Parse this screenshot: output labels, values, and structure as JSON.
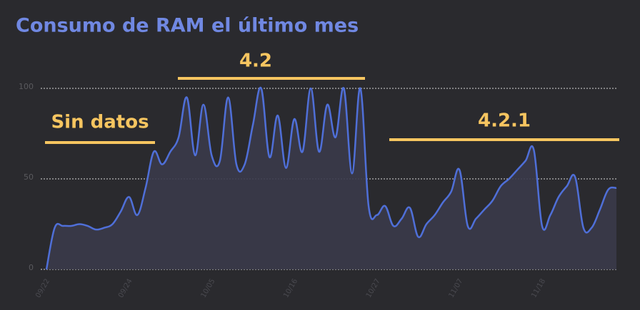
{
  "chart_data": {
    "type": "area",
    "title": "Consumo de RAM el último mes",
    "annotations": [
      "Sin datos",
      "4.2",
      "4.2.1"
    ],
    "categories": [
      "09/22",
      null,
      null,
      null,
      null,
      null,
      null,
      null,
      null,
      null,
      "09/24",
      null,
      null,
      null,
      null,
      null,
      null,
      null,
      null,
      null,
      "10/05",
      null,
      null,
      null,
      null,
      null,
      null,
      null,
      null,
      null,
      "10/16",
      null,
      null,
      null,
      null,
      null,
      null,
      null,
      null,
      null,
      "10/27",
      null,
      null,
      null,
      null,
      null,
      null,
      null,
      null,
      null,
      "11/07",
      null,
      null,
      null,
      null,
      null,
      null,
      null,
      null,
      null,
      "11/18",
      null,
      null,
      null,
      null,
      null,
      null,
      null,
      null,
      null
    ],
    "values": [
      0,
      23,
      24,
      24,
      25,
      24,
      22,
      23,
      25,
      32,
      40,
      30,
      45,
      65,
      58,
      65,
      73,
      95,
      63,
      91,
      63,
      60,
      95,
      58,
      58,
      80,
      100,
      62,
      85,
      56,
      83,
      65,
      100,
      65,
      91,
      73,
      100,
      53,
      100,
      35,
      30,
      35,
      24,
      28,
      34,
      18,
      25,
      30,
      37,
      43,
      55,
      24,
      28,
      33,
      38,
      46,
      50,
      55,
      60,
      66,
      24,
      30,
      40,
      46,
      51,
      23,
      23,
      33,
      44,
      45
    ],
    "color": "#4f6fd8",
    "fill": "#3a3a4a",
    "ylim": [
      0,
      100
    ],
    "yticks": [
      0,
      50,
      100
    ],
    "grid": true
  }
}
